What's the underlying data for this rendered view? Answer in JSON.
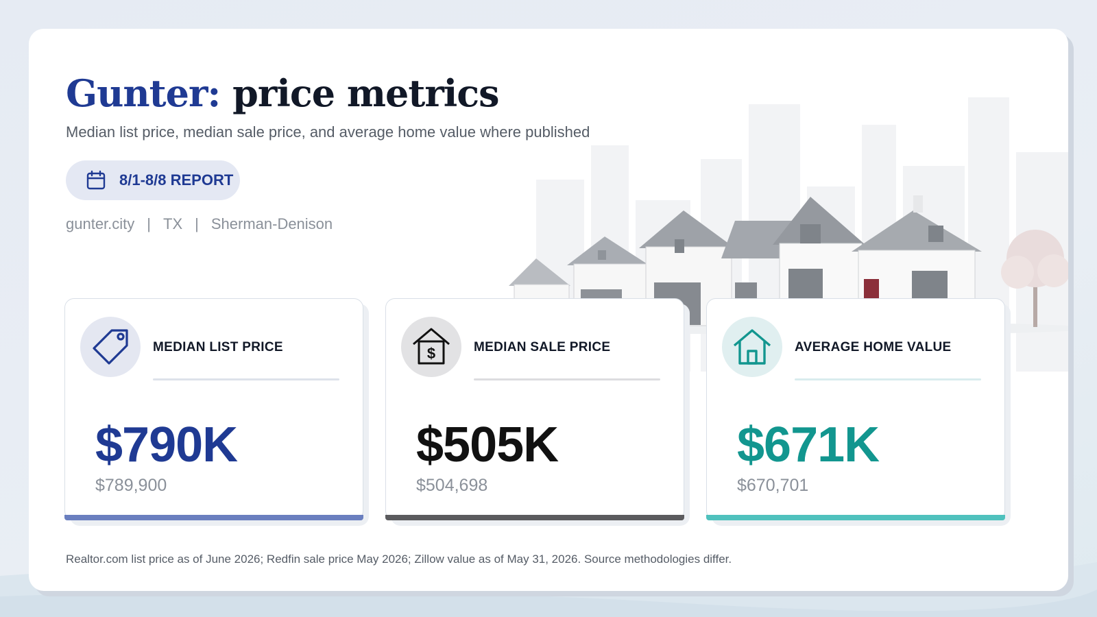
{
  "header": {
    "place": "Gunter:",
    "title_rest": "price metrics",
    "subtitle": "Median list price, median sale price, and average home value where published"
  },
  "badge": {
    "icon": "calendar-icon",
    "text": "8/1-8/8 REPORT"
  },
  "meta": {
    "website": "gunter.city",
    "sep1": "|",
    "state": "TX",
    "sep2": "|",
    "metro": "Sherman-Denison"
  },
  "metrics": [
    {
      "label": "MEDIAN LIST PRICE",
      "value": "$790K",
      "exact": "$789,900",
      "icon": "price-tag-icon",
      "accent": "#1f3a93",
      "circle": "#e4e7f1",
      "rule": "#dde2ea",
      "bar": "#6a7fbf"
    },
    {
      "label": "MEDIAN SALE PRICE",
      "value": "$505K",
      "exact": "$504,698",
      "icon": "house-dollar-icon",
      "accent": "#111111",
      "circle": "#e2e2e4",
      "rule": "#dcdcdf",
      "bar": "#5b5b5e"
    },
    {
      "label": "AVERAGE HOME VALUE",
      "value": "$671K",
      "exact": "$670,701",
      "icon": "home-icon",
      "accent": "#12968f",
      "circle": "#e0eff0",
      "rule": "#d9ecee",
      "bar": "#4fc1bd"
    }
  ],
  "footnote": "Realtor.com list price as of June 2026; Redfin sale price May 2026; Zillow value as of May 31, 2026. Source methodologies differ."
}
